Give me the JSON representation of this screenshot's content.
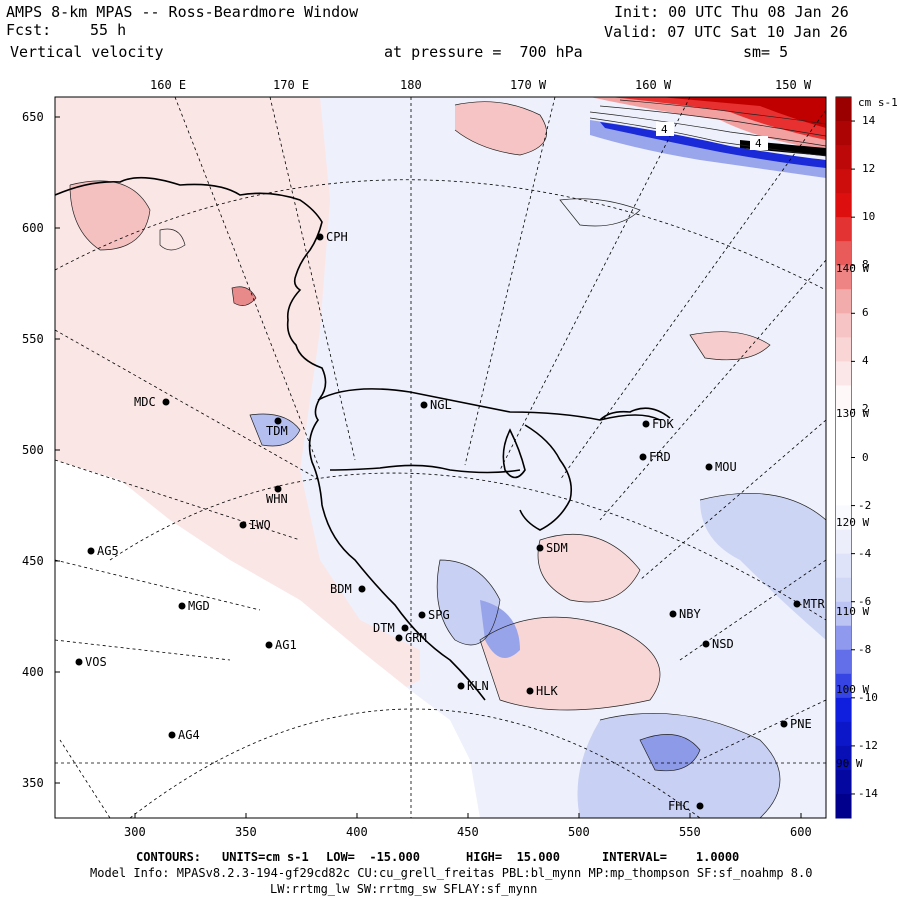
{
  "header": {
    "title": "AMPS 8-km MPAS -- Ross-Beardmore Window",
    "fcst_label": "Fcst:",
    "fcst_hours": "55 h",
    "variable": "Vertical velocity",
    "init": "Init: 00 UTC Thu 08 Jan 26",
    "valid": "Valid: 07 UTC Sat 10 Jan 26",
    "pressure": "at pressure =  700 hPa",
    "smoothing": "sm= 5"
  },
  "axes": {
    "top_lon_labels": [
      "160 E",
      "170 E",
      "180",
      "170 W",
      "160 W",
      "150 W"
    ],
    "left_ticks": [
      "650",
      "600",
      "550",
      "500",
      "450",
      "400",
      "350"
    ],
    "bottom_ticks": [
      "300",
      "350",
      "400",
      "450",
      "500",
      "550",
      "600"
    ],
    "right_lon_labels": [
      "140 W",
      "130 W",
      "120 W",
      "110 W",
      "100 W",
      "90 W"
    ]
  },
  "colorbar": {
    "units": "cm s-1",
    "tick_labels": [
      "14",
      "12",
      "10",
      "8",
      "6",
      "4",
      "2",
      "0",
      "-2",
      "-4",
      "-6",
      "-8",
      "-10",
      "-12",
      "-14"
    ],
    "colors": {
      "max_red": "#9b0000",
      "red": "#e01010",
      "pink": "#f4b8b8",
      "white": "#ffffff",
      "lightblue": "#c8d0f4",
      "blue": "#1020e0",
      "max_blue": "#00008c"
    }
  },
  "stations": [
    {
      "name": "CPH"
    },
    {
      "name": "MDC"
    },
    {
      "name": "TDM"
    },
    {
      "name": "NGL"
    },
    {
      "name": "FDK"
    },
    {
      "name": "FRD"
    },
    {
      "name": "MOU"
    },
    {
      "name": "WHN"
    },
    {
      "name": "IWO"
    },
    {
      "name": "AG5"
    },
    {
      "name": "SDM"
    },
    {
      "name": "BDM"
    },
    {
      "name": "MGD"
    },
    {
      "name": "SPG"
    },
    {
      "name": "DTM"
    },
    {
      "name": "GRM"
    },
    {
      "name": "AG1"
    },
    {
      "name": "NBY"
    },
    {
      "name": "MTR"
    },
    {
      "name": "NSD"
    },
    {
      "name": "VOS"
    },
    {
      "name": "KLN"
    },
    {
      "name": "HLK"
    },
    {
      "name": "PNE"
    },
    {
      "name": "AG4"
    },
    {
      "name": "FHC"
    }
  ],
  "contour_labels": [
    "4",
    "4"
  ],
  "footer": {
    "contours_label": "CONTOURS:",
    "units": "UNITS=cm s-1",
    "low": "LOW=  -15.000",
    "high": "HIGH=  15.000",
    "interval": "INTERVAL=    1.0000",
    "model_info": "Model Info: MPASv8.2.3-194-gf29cd82c CU:cu_grell_freitas PBL:bl_mynn MP:mp_thompson SF:sf_noahmp 8.0",
    "model_info2": "LW:rrtmg_lw SW:rrtmg_sw SFLAY:sf_mynn"
  }
}
